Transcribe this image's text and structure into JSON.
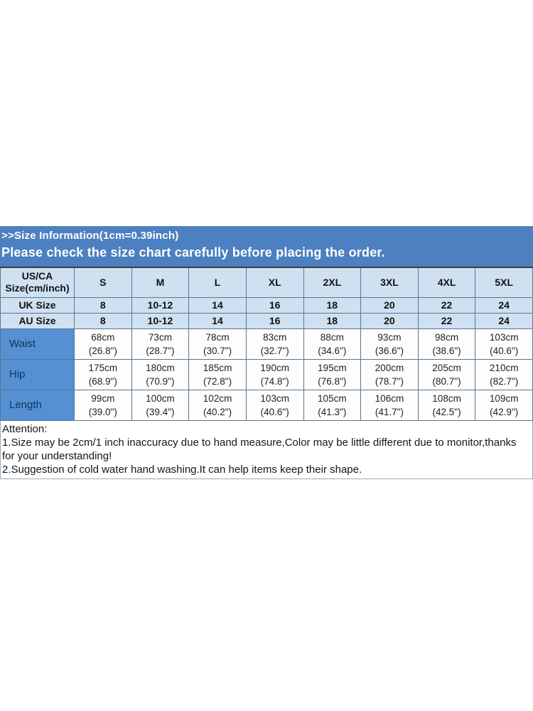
{
  "header_band": {
    "line1": ">>Size Information(1cm=0.39inch)",
    "line2": "Please check the size chart carefully before placing the order."
  },
  "size_table": {
    "columns": [
      "US/CA Size(cm/inch)",
      "S",
      "M",
      "L",
      "XL",
      "2XL",
      "3XL",
      "4XL",
      "5XL"
    ],
    "uk_row": {
      "label": "UK Size",
      "values": [
        "8",
        "10-12",
        "14",
        "16",
        "18",
        "20",
        "22",
        "24"
      ]
    },
    "au_row": {
      "label": "AU Size",
      "values": [
        "8",
        "10-12",
        "14",
        "16",
        "18",
        "20",
        "22",
        "24"
      ]
    },
    "measure_rows": [
      {
        "label": "Waist",
        "cells": [
          {
            "cm": "68cm",
            "inch": "(26.8\")"
          },
          {
            "cm": "73cm",
            "inch": "(28.7\")"
          },
          {
            "cm": "78cm",
            "inch": "(30.7\")"
          },
          {
            "cm": "83cm",
            "inch": "(32.7\")"
          },
          {
            "cm": "88cm",
            "inch": "(34.6\")"
          },
          {
            "cm": "93cm",
            "inch": "(36.6\")"
          },
          {
            "cm": "98cm",
            "inch": "(38.6\")"
          },
          {
            "cm": "103cm",
            "inch": "(40.6\")"
          }
        ]
      },
      {
        "label": "Hip",
        "cells": [
          {
            "cm": "175cm",
            "inch": "(68.9\")"
          },
          {
            "cm": "180cm",
            "inch": "(70.9\")"
          },
          {
            "cm": "185cm",
            "inch": "(72.8\")"
          },
          {
            "cm": "190cm",
            "inch": "(74.8\")"
          },
          {
            "cm": "195cm",
            "inch": "(76.8\")"
          },
          {
            "cm": "200cm",
            "inch": "(78.7\")"
          },
          {
            "cm": "205cm",
            "inch": "(80.7\")"
          },
          {
            "cm": "210cm",
            "inch": "(82.7\")"
          }
        ]
      },
      {
        "label": "Length",
        "cells": [
          {
            "cm": "99cm",
            "inch": "(39.0\")"
          },
          {
            "cm": "100cm",
            "inch": "(39.4\")"
          },
          {
            "cm": "102cm",
            "inch": "(40.2\")"
          },
          {
            "cm": "103cm",
            "inch": "(40.6\")"
          },
          {
            "cm": "105cm",
            "inch": "(41.3\")"
          },
          {
            "cm": "106cm",
            "inch": "(41.7\")"
          },
          {
            "cm": "108cm",
            "inch": "(42.5\")"
          },
          {
            "cm": "109cm",
            "inch": "(42.9\")"
          }
        ]
      }
    ]
  },
  "attention": {
    "title": "Attention:",
    "note1": "1.Size may be 2cm/1 inch inaccuracy due to hand measure,Color may be little different due to monitor,thanks for your understanding!",
    "note2": "2.Suggestion of cold water hand washing.It can help items keep their shape."
  },
  "colors": {
    "band_blue": "#4d80c0",
    "header_cell_blue": "#cfe0f1",
    "label_cell_blue": "#5590d2",
    "navy_text": "#0e3563"
  }
}
